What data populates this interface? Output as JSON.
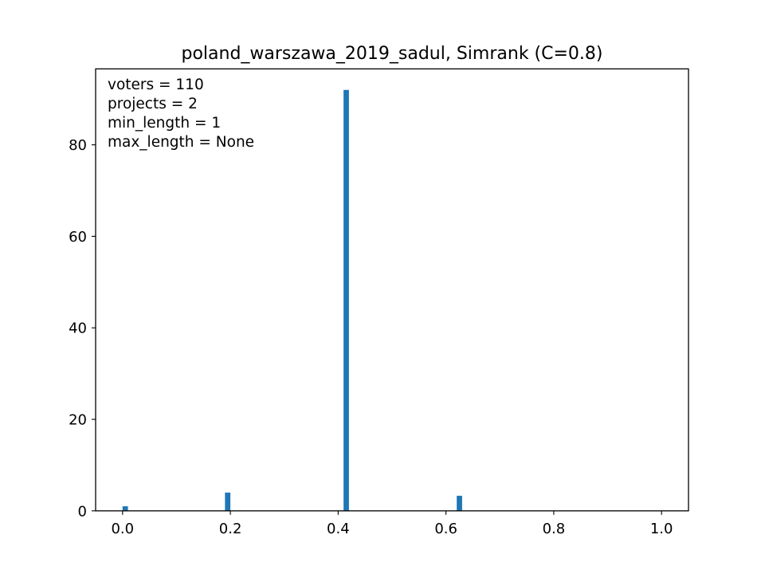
{
  "chart_data": {
    "type": "bar",
    "title": "poland_warszawa_2019_sadul, Simrank (C=0.8)",
    "xlabel": "",
    "ylabel": "",
    "xlim": [
      -0.05,
      1.05
    ],
    "ylim": [
      0,
      96.6
    ],
    "x_ticks": [
      {
        "value": 0.0,
        "label": "0.0"
      },
      {
        "value": 0.2,
        "label": "0.2"
      },
      {
        "value": 0.4,
        "label": "0.4"
      },
      {
        "value": 0.6,
        "label": "0.6"
      },
      {
        "value": 0.8,
        "label": "0.8"
      },
      {
        "value": 1.0,
        "label": "1.0"
      }
    ],
    "y_ticks": [
      {
        "value": 0,
        "label": "0"
      },
      {
        "value": 20,
        "label": "20"
      },
      {
        "value": 40,
        "label": "40"
      },
      {
        "value": 60,
        "label": "60"
      },
      {
        "value": 80,
        "label": "80"
      }
    ],
    "bin_width": 0.01,
    "bars": [
      {
        "x0": 0.0,
        "x1": 0.01,
        "value": 1
      },
      {
        "x0": 0.19,
        "x1": 0.2,
        "value": 4
      },
      {
        "x0": 0.41,
        "x1": 0.42,
        "value": 92
      },
      {
        "x0": 0.62,
        "x1": 0.63,
        "value": 3.3
      }
    ],
    "annotations": [
      "voters = 110",
      "projects = 2",
      "min_length = 1",
      "max_length = None"
    ],
    "annotation_placement": "top-left",
    "grid": false,
    "legend": null,
    "bar_color": "#1f77b4"
  }
}
